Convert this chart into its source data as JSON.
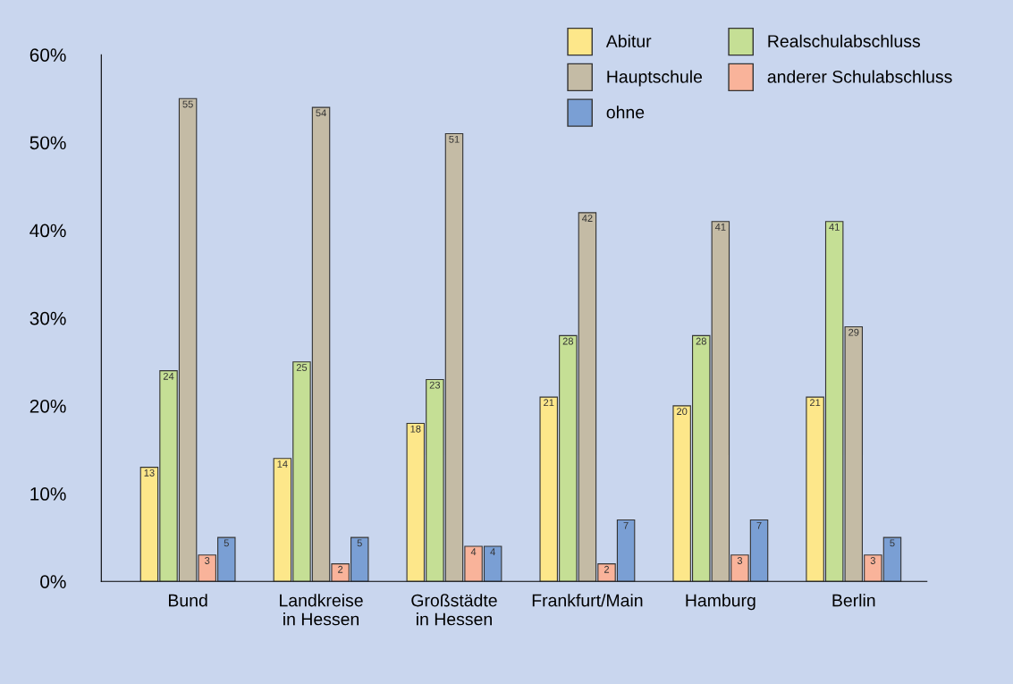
{
  "chart_data": {
    "type": "bar",
    "categories": [
      "Bund",
      "Landkreise\nin Hessen",
      "Großstädte\nin Hessen",
      "Frankfurt/Main",
      "Hamburg",
      "Berlin"
    ],
    "series": [
      {
        "name": "Abitur",
        "color": "#fde78a",
        "values": [
          13,
          14,
          18,
          21,
          20,
          21
        ]
      },
      {
        "name": "Realschulabschluss",
        "color": "#c5df95",
        "values": [
          24,
          25,
          23,
          28,
          28,
          41
        ]
      },
      {
        "name": "Hauptschule",
        "color": "#c4bba5",
        "values": [
          55,
          54,
          51,
          42,
          41,
          29
        ]
      },
      {
        "name": "anderer Schulabschluss",
        "color": "#f9b39a",
        "values": [
          3,
          2,
          4,
          2,
          3,
          3
        ]
      },
      {
        "name": "ohne",
        "color": "#7a9fd4",
        "values": [
          5,
          5,
          4,
          7,
          7,
          5
        ]
      }
    ],
    "ylim": [
      0,
      60
    ],
    "yticks": [
      {
        "value": 0,
        "label": "0%"
      },
      {
        "value": 10,
        "label": "10%"
      },
      {
        "value": 20,
        "label": "20%"
      },
      {
        "value": 30,
        "label": "30%"
      },
      {
        "value": 40,
        "label": "40%"
      },
      {
        "value": 50,
        "label": "50%"
      },
      {
        "value": 60,
        "label": "60%"
      }
    ],
    "data_labels": true,
    "grid": false,
    "legend": "top right"
  }
}
